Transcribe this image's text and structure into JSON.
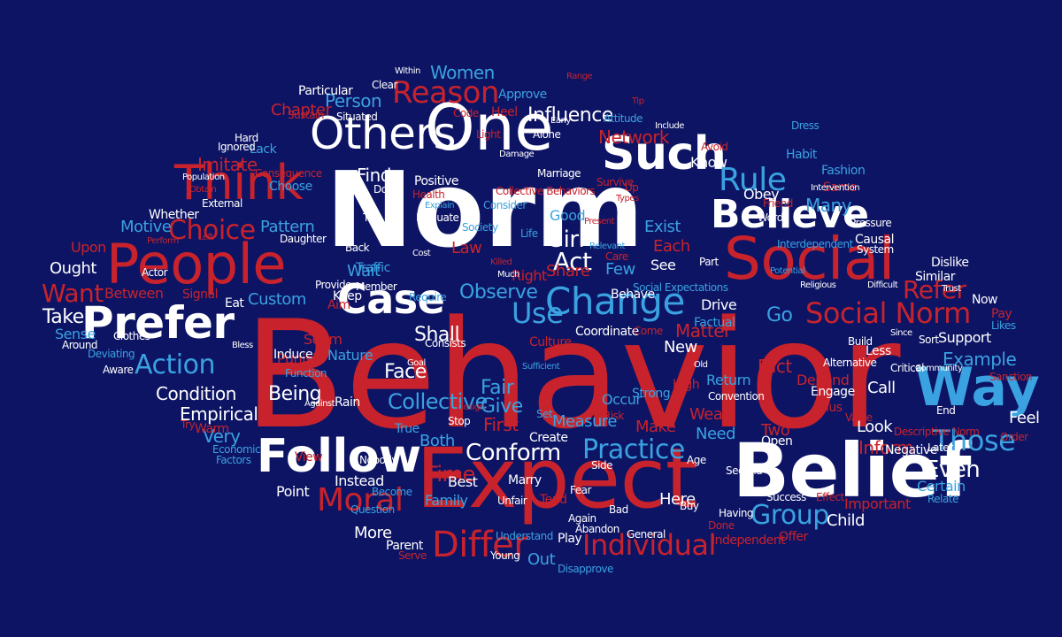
{
  "colors": {
    "background": "#0d1464",
    "red": "#c8232c",
    "white": "#ffffff",
    "blue": "#3aa2e0"
  },
  "words": [
    {
      "text": "Behavior",
      "color": "red"
    },
    {
      "text": "Norm",
      "color": "white"
    },
    {
      "text": "Expect",
      "color": "red"
    },
    {
      "text": "One",
      "color": "white"
    },
    {
      "text": "Belief",
      "color": "white"
    },
    {
      "text": "People",
      "color": "red"
    },
    {
      "text": "Social",
      "color": "red"
    },
    {
      "text": "Way",
      "color": "blue"
    },
    {
      "text": "Others",
      "color": "white"
    },
    {
      "text": "Think",
      "color": "red"
    },
    {
      "text": "Such",
      "color": "white"
    },
    {
      "text": "Follow",
      "color": "white"
    },
    {
      "text": "Prefer",
      "color": "white"
    },
    {
      "text": "Believe",
      "color": "white"
    },
    {
      "text": "Case",
      "color": "white"
    },
    {
      "text": "Change",
      "color": "blue"
    },
    {
      "text": "Social Norm",
      "color": "red"
    },
    {
      "text": "Reason",
      "color": "red"
    },
    {
      "text": "Rule",
      "color": "blue"
    },
    {
      "text": "Differ",
      "color": "red"
    },
    {
      "text": "Individual",
      "color": "red"
    },
    {
      "text": "Practice",
      "color": "blue"
    },
    {
      "text": "Group",
      "color": "blue"
    },
    {
      "text": "Those",
      "color": "blue"
    },
    {
      "text": "Use",
      "color": "blue"
    },
    {
      "text": "Action",
      "color": "blue"
    },
    {
      "text": "Moral",
      "color": "red"
    },
    {
      "text": "Choice",
      "color": "red"
    },
    {
      "text": "Conform",
      "color": "white"
    },
    {
      "text": "Collective",
      "color": "blue"
    },
    {
      "text": "Influence",
      "color": "white"
    },
    {
      "text": "Person",
      "color": "blue"
    },
    {
      "text": "Refer",
      "color": "red"
    },
    {
      "text": "Example",
      "color": "blue"
    },
    {
      "text": "Imitate",
      "color": "red"
    },
    {
      "text": "Observe",
      "color": "blue"
    },
    {
      "text": "Time",
      "color": "red"
    },
    {
      "text": "Want",
      "color": "red"
    },
    {
      "text": "Take",
      "color": "white"
    },
    {
      "text": "Act",
      "color": "white"
    },
    {
      "text": "Girl",
      "color": "white"
    },
    {
      "text": "Network",
      "color": "red"
    },
    {
      "text": "Women",
      "color": "blue"
    },
    {
      "text": "Chapter",
      "color": "red"
    },
    {
      "text": "Even",
      "color": "white"
    },
    {
      "text": "Very",
      "color": "blue"
    },
    {
      "text": "Empirical",
      "color": "white"
    },
    {
      "text": "Condition",
      "color": "white"
    },
    {
      "text": "Being",
      "color": "white"
    },
    {
      "text": "Face",
      "color": "white"
    },
    {
      "text": "Fair",
      "color": "blue"
    },
    {
      "text": "Give",
      "color": "blue"
    },
    {
      "text": "First",
      "color": "red"
    },
    {
      "text": "Shall",
      "color": "white"
    },
    {
      "text": "Matter",
      "color": "red"
    },
    {
      "text": "Go",
      "color": "blue"
    },
    {
      "text": "Fact",
      "color": "red"
    },
    {
      "text": "Many",
      "color": "blue"
    },
    {
      "text": "Know",
      "color": "white"
    },
    {
      "text": "Find",
      "color": "white"
    },
    {
      "text": "Custom",
      "color": "blue"
    },
    {
      "text": "Pattern",
      "color": "blue"
    },
    {
      "text": "Motive",
      "color": "blue"
    },
    {
      "text": "Wait",
      "color": "blue"
    },
    {
      "text": "Law",
      "color": "red"
    },
    {
      "text": "Need",
      "color": "blue"
    },
    {
      "text": "Make",
      "color": "red"
    },
    {
      "text": "Wear",
      "color": "red"
    },
    {
      "text": "Two",
      "color": "red"
    },
    {
      "text": "Look",
      "color": "white"
    },
    {
      "text": "Inform",
      "color": "red"
    },
    {
      "text": "Call",
      "color": "white"
    },
    {
      "text": "Feel",
      "color": "white"
    },
    {
      "text": "Certain",
      "color": "blue"
    },
    {
      "text": "Important",
      "color": "red"
    },
    {
      "text": "Child",
      "color": "white"
    },
    {
      "text": "Here",
      "color": "white"
    },
    {
      "text": "Out",
      "color": "blue"
    },
    {
      "text": "More",
      "color": "white"
    },
    {
      "text": "Point",
      "color": "white"
    },
    {
      "text": "Family",
      "color": "blue"
    },
    {
      "text": "Best",
      "color": "white"
    },
    {
      "text": "Both",
      "color": "blue"
    },
    {
      "text": "Create",
      "color": "white"
    },
    {
      "text": "Share",
      "color": "red"
    },
    {
      "text": "Few",
      "color": "blue"
    },
    {
      "text": "See",
      "color": "white"
    },
    {
      "text": "Each",
      "color": "red"
    },
    {
      "text": "Exist",
      "color": "blue"
    },
    {
      "text": "Good",
      "color": "blue"
    },
    {
      "text": "Right",
      "color": "red"
    },
    {
      "text": "Positive",
      "color": "white"
    },
    {
      "text": "Obey",
      "color": "white"
    },
    {
      "text": "Drive",
      "color": "white"
    },
    {
      "text": "Factual",
      "color": "blue"
    },
    {
      "text": "New",
      "color": "white"
    },
    {
      "text": "Support",
      "color": "white"
    },
    {
      "text": "Sort",
      "color": "white"
    },
    {
      "text": "Less",
      "color": "white"
    },
    {
      "text": "Ought",
      "color": "white"
    },
    {
      "text": "Between",
      "color": "red"
    },
    {
      "text": "Sense",
      "color": "blue"
    },
    {
      "text": "Signal",
      "color": "red"
    },
    {
      "text": "Upon",
      "color": "red"
    },
    {
      "text": "Eat",
      "color": "white"
    },
    {
      "text": "Punish",
      "color": "red"
    },
    {
      "text": "Seem",
      "color": "red"
    },
    {
      "text": "Nature",
      "color": "blue"
    },
    {
      "text": "Induce",
      "color": "white"
    },
    {
      "text": "Keep",
      "color": "white"
    },
    {
      "text": "Member",
      "color": "white"
    },
    {
      "text": "Approve",
      "color": "blue"
    },
    {
      "text": "Particular",
      "color": "white"
    },
    {
      "text": "Situated",
      "color": "white"
    },
    {
      "text": "Heel",
      "color": "red"
    },
    {
      "text": "Code",
      "color": "red"
    },
    {
      "text": "Attitude",
      "color": "blue"
    },
    {
      "text": "Sustain",
      "color": "red"
    },
    {
      "text": "Light",
      "color": "red"
    },
    {
      "text": "Hard",
      "color": "white"
    },
    {
      "text": "Lack",
      "color": "blue"
    },
    {
      "text": "Ignored",
      "color": "white"
    },
    {
      "text": "Consequence",
      "color": "red"
    },
    {
      "text": "Choose",
      "color": "blue"
    },
    {
      "text": "External",
      "color": "white"
    },
    {
      "text": "Whether",
      "color": "white"
    },
    {
      "text": "Daughter",
      "color": "white"
    },
    {
      "text": "Tell",
      "color": "white"
    },
    {
      "text": "Evaluate",
      "color": "white"
    },
    {
      "text": "Society",
      "color": "blue"
    },
    {
      "text": "Marriage",
      "color": "white"
    },
    {
      "text": "Traffic",
      "color": "blue"
    },
    {
      "text": "Back",
      "color": "white"
    },
    {
      "text": "Cost",
      "color": "white"
    },
    {
      "text": "Care",
      "color": "red"
    },
    {
      "text": "Fashion",
      "color": "blue"
    },
    {
      "text": "Friend",
      "color": "red"
    },
    {
      "text": "Same",
      "color": "red"
    },
    {
      "text": "Avoid",
      "color": "red"
    },
    {
      "text": "Habit",
      "color": "blue"
    },
    {
      "text": "Pressure",
      "color": "white"
    },
    {
      "text": "Causal",
      "color": "white"
    },
    {
      "text": "Dislike",
      "color": "white"
    },
    {
      "text": "Similar",
      "color": "white"
    },
    {
      "text": "Interdependent",
      "color": "blue"
    },
    {
      "text": "System",
      "color": "white"
    },
    {
      "text": "Part",
      "color": "white"
    },
    {
      "text": "Now",
      "color": "white"
    },
    {
      "text": "Pay",
      "color": "red"
    },
    {
      "text": "Likes",
      "color": "blue"
    },
    {
      "text": "Behave",
      "color": "white"
    },
    {
      "text": "Social Expectations",
      "color": "blue"
    },
    {
      "text": "Require",
      "color": "blue"
    },
    {
      "text": "Coordinate",
      "color": "white"
    },
    {
      "text": "Culture",
      "color": "red"
    },
    {
      "text": "Come",
      "color": "red"
    },
    {
      "text": "Return",
      "color": "blue"
    },
    {
      "text": "Strong",
      "color": "blue"
    },
    {
      "text": "High",
      "color": "red"
    },
    {
      "text": "Open",
      "color": "white"
    },
    {
      "text": "Engage",
      "color": "white"
    },
    {
      "text": "Thus",
      "color": "red"
    },
    {
      "text": "Depend",
      "color": "red"
    },
    {
      "text": "Value",
      "color": "red"
    },
    {
      "text": "Descriptive Norm",
      "color": "red"
    },
    {
      "text": "Negative",
      "color": "white"
    },
    {
      "text": "Sanction",
      "color": "red"
    },
    {
      "text": "Occur",
      "color": "blue"
    },
    {
      "text": "Risk",
      "color": "red"
    },
    {
      "text": "Set",
      "color": "blue"
    },
    {
      "text": "True",
      "color": "blue"
    },
    {
      "text": "Marry",
      "color": "white"
    },
    {
      "text": "Nobody",
      "color": "white"
    },
    {
      "text": "Instead",
      "color": "white"
    },
    {
      "text": "Become",
      "color": "blue"
    },
    {
      "text": "View",
      "color": "red"
    },
    {
      "text": "Rain",
      "color": "white"
    },
    {
      "text": "Warm",
      "color": "red"
    },
    {
      "text": "Try",
      "color": "red"
    },
    {
      "text": "Aware",
      "color": "white"
    },
    {
      "text": "Deviating",
      "color": "blue"
    },
    {
      "text": "Clothes",
      "color": "white"
    },
    {
      "text": "Around",
      "color": "white"
    },
    {
      "text": "Actor",
      "color": "white"
    },
    {
      "text": "Economic",
      "color": "blue"
    },
    {
      "text": "Question",
      "color": "blue"
    },
    {
      "text": "Parent",
      "color": "white"
    },
    {
      "text": "Play",
      "color": "white"
    },
    {
      "text": "Disapprove",
      "color": "blue"
    },
    {
      "text": "Independent",
      "color": "red"
    },
    {
      "text": "Offer",
      "color": "red"
    },
    {
      "text": "Done",
      "color": "red"
    },
    {
      "text": "Success",
      "color": "white"
    },
    {
      "text": "Effect",
      "color": "red"
    },
    {
      "text": "Relate",
      "color": "blue"
    },
    {
      "text": "Tend",
      "color": "red"
    },
    {
      "text": "Unfair",
      "color": "white"
    },
    {
      "text": "Side",
      "color": "white"
    },
    {
      "text": "Age",
      "color": "white"
    },
    {
      "text": "Buy",
      "color": "white"
    },
    {
      "text": "Bad",
      "color": "white"
    },
    {
      "text": "General",
      "color": "white"
    },
    {
      "text": "Having",
      "color": "white"
    },
    {
      "text": "Understand",
      "color": "blue"
    },
    {
      "text": "Collective Behaviors",
      "color": "red"
    },
    {
      "text": "Alone",
      "color": "white"
    },
    {
      "text": "Survive",
      "color": "red"
    },
    {
      "text": "Health",
      "color": "red"
    },
    {
      "text": "Doing",
      "color": "white"
    },
    {
      "text": "Consider",
      "color": "blue"
    },
    {
      "text": "Damage",
      "color": "white"
    },
    {
      "text": "Clear",
      "color": "white"
    },
    {
      "text": "Within",
      "color": "white"
    },
    {
      "text": "Measure",
      "color": "blue"
    },
    {
      "text": "Stop",
      "color": "white"
    },
    {
      "text": "Goal",
      "color": "white"
    },
    {
      "text": "Consists",
      "color": "white"
    },
    {
      "text": "Old",
      "color": "white"
    },
    {
      "text": "Convention",
      "color": "white"
    },
    {
      "text": "Build",
      "color": "white"
    },
    {
      "text": "Later",
      "color": "white"
    },
    {
      "text": "Order",
      "color": "red"
    },
    {
      "text": "End",
      "color": "white"
    },
    {
      "text": "Function",
      "color": "blue"
    },
    {
      "text": "Aim",
      "color": "red"
    },
    {
      "text": "Provide",
      "color": "white"
    },
    {
      "text": "Range",
      "color": "red"
    },
    {
      "text": "Tip",
      "color": "red"
    },
    {
      "text": "Early",
      "color": "white"
    },
    {
      "text": "Dress",
      "color": "blue"
    },
    {
      "text": "Word",
      "color": "white"
    },
    {
      "text": "Up",
      "color": "red"
    },
    {
      "text": "Factors",
      "color": "blue"
    },
    {
      "text": "Young",
      "color": "white"
    },
    {
      "text": "Again",
      "color": "white"
    },
    {
      "text": "Fear",
      "color": "white"
    },
    {
      "text": "Abandon",
      "color": "white"
    },
    {
      "text": "Second",
      "color": "white"
    },
    {
      "text": "Critical",
      "color": "white"
    },
    {
      "text": "Alternative",
      "color": "white"
    },
    {
      "text": "Potential",
      "color": "blue"
    },
    {
      "text": "Religious",
      "color": "white"
    },
    {
      "text": "Intervention",
      "color": "white"
    },
    {
      "text": "Community",
      "color": "white"
    },
    {
      "text": "Population",
      "color": "white"
    },
    {
      "text": "Perform",
      "color": "red"
    },
    {
      "text": "Obtain",
      "color": "red"
    },
    {
      "text": "Types",
      "color": "red"
    },
    {
      "text": "Killed",
      "color": "red"
    },
    {
      "text": "Much",
      "color": "white"
    },
    {
      "text": "Life",
      "color": "blue"
    },
    {
      "text": "Present",
      "color": "red"
    },
    {
      "text": "Relevant",
      "color": "blue"
    },
    {
      "text": "Include",
      "color": "white"
    },
    {
      "text": "Explain",
      "color": "blue"
    },
    {
      "text": "Difficult",
      "color": "white"
    },
    {
      "text": "Trust",
      "color": "white"
    },
    {
      "text": "Since",
      "color": "white"
    },
    {
      "text": "Serve",
      "color": "red"
    },
    {
      "text": "Against",
      "color": "white"
    },
    {
      "text": "Design",
      "color": "red"
    },
    {
      "text": "Sufficient",
      "color": "blue"
    },
    {
      "text": "Bless",
      "color": "white"
    },
    {
      "text": "Left",
      "color": "red"
    }
  ]
}
